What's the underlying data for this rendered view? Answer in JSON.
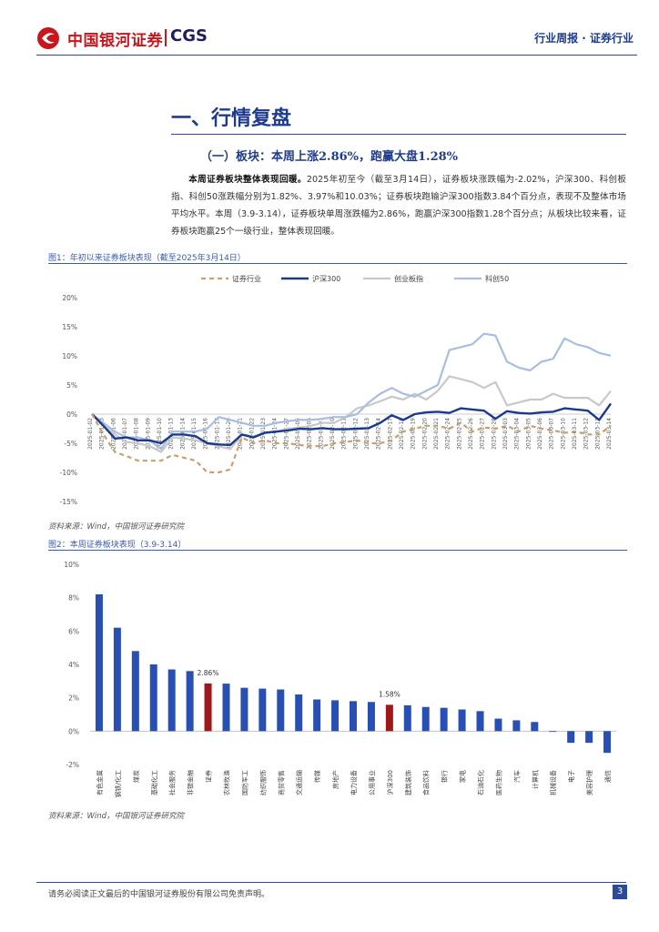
{
  "header": {
    "logo_cn": "中国银河证券",
    "logo_en": "CGS",
    "report_type": "行业周报 · 证券行业"
  },
  "section": {
    "title": "一、行情复盘",
    "subtitle": "（一）板块：本周上涨2.86%，跑赢大盘1.28%"
  },
  "body": {
    "lead": "本周证券板块整体表现回暖。",
    "text": "2025年初至今（截至3月14日），证券板块涨跌幅为-2.02%，沪深300、科创板指、科创50涨跌幅分别为1.82%、3.97%和10.03%；证券板块跑输沪深300指数3.84个百分点，表现不及整体市场平均水平。本周（3.9-3.14），证券板块单周涨跌幅为2.86%，跑赢沪深300指数1.28个百分点；从板块比较来看，证券板块跑赢25个一级行业，整体表现回暖。"
  },
  "figure1": {
    "title": "图1：年初以来证券板块表现（截至2025年3月14日）",
    "source": "资料来源：Wind，中国银河证券研究院"
  },
  "figure2": {
    "title": "图2：本周证券板块表现（3.9-3.14）",
    "source": "资料来源：Wind，中国银河证券研究院"
  },
  "footer": {
    "disclaimer": "请务必阅读正文最后的中国银河证券股份有限公司免责声明。",
    "page": "3"
  },
  "colors": {
    "brand_red": "#c8161d",
    "navy": "#1f3b8c",
    "security_line": "#c8a070",
    "hs300_line": "#1a3a8c",
    "star_line": "#c8c8c8",
    "star50_line": "#a9bde0",
    "bar_blue": "#2850b4",
    "bar_red": "#a01818"
  },
  "chart_data": [
    {
      "type": "line",
      "title": "年初以来证券板块表现（截至2025年3月14日）",
      "ylim": [
        -15,
        20
      ],
      "yticks": [
        "20%",
        "15%",
        "10%",
        "5%",
        "0%",
        "-5%",
        "-10%",
        "-15%"
      ],
      "x": [
        "2025-01-02",
        "2025-01-03",
        "2025-01-06",
        "2025-01-07",
        "2025-01-08",
        "2025-01-09",
        "2025-01-10",
        "2025-01-13",
        "2025-01-14",
        "2025-01-15",
        "2025-01-16",
        "2025-01-17",
        "2025-01-20",
        "2025-01-21",
        "2025-01-22",
        "2025-01-23",
        "2025-01-24",
        "2025-01-27",
        "2025-02-05",
        "2025-02-06",
        "2025-02-07",
        "2025-02-10",
        "2025-02-11",
        "2025-02-12",
        "2025-02-13",
        "2025-02-14",
        "2025-02-17",
        "2025-02-18",
        "2025-02-19",
        "2025-02-20",
        "2025-02-21",
        "2025-02-24",
        "2025-02-25",
        "2025-02-26",
        "2025-02-27",
        "2025-02-28",
        "2025-03-03",
        "2025-03-04",
        "2025-03-05",
        "2025-03-06",
        "2025-03-07",
        "2025-03-10",
        "2025-03-11",
        "2025-03-12",
        "2025-03-13",
        "2025-03-14"
      ],
      "x_tick_labels": [
        "2025-01-02",
        "2025-01-03",
        "2025-01-06",
        "2025-01-07",
        "2025-01-08",
        "2025-01-09",
        "2025-01-10",
        "2025-01-13",
        "2025-01-14",
        "2025-01-15",
        "2025-01-16",
        "2025-01-17",
        "2025-01-20",
        "2025-01-21",
        "2025-01-22",
        "2025-01-23",
        "2025-01-24",
        "2025-01-27",
        "2025-02-05",
        "2025-02-06",
        "2025-02-07",
        "2025-02-10",
        "2025-02-11",
        "2025-02-12",
        "2025-02-13",
        "2025-02-14",
        "2025-02-17",
        "2025-02-18",
        "2025-02-19",
        "2025-02-20",
        "2025-02-21",
        "2025-02-24",
        "2025-02-25",
        "2025-02-26",
        "2025-02-27",
        "2025-02-28",
        "2025-03-03",
        "2025-03-04",
        "2025-03-05",
        "2025-03-06",
        "2025-03-07",
        "2025-03-10",
        "2025-03-11",
        "2025-03-12",
        "2025-03-13",
        "2025-03-14"
      ],
      "series": [
        {
          "name": "证券行业",
          "style": "dashed",
          "values": [
            0,
            -3.5,
            -6.5,
            -7.2,
            -8,
            -8,
            -8,
            -7,
            -7.5,
            -8,
            -10,
            -10,
            -9.5,
            -4,
            -5,
            -4.5,
            -5,
            -5,
            -5.3,
            -5.5,
            -5.5,
            -5,
            -4.8,
            -4.5,
            -5,
            -5,
            -4.5,
            -3,
            -2.5,
            -2,
            -2,
            -2.5,
            -1.5,
            -3,
            -2.3,
            -2.5,
            -2,
            -3,
            -2,
            -2.5,
            -2.8,
            -3.2,
            -3,
            -3.5,
            -3.5,
            -2.0
          ]
        },
        {
          "name": "沪深300",
          "style": "solid-bold",
          "values": [
            0,
            -2,
            -4.2,
            -4,
            -4.5,
            -4.5,
            -5,
            -3.5,
            -3.5,
            -3.8,
            -5,
            -5.2,
            -5.3,
            -3.5,
            -4,
            -3.2,
            -3,
            -2.8,
            -2.5,
            -2.6,
            -2.4,
            -2.6,
            -2.6,
            -2.5,
            -2.4,
            -1.5,
            -0.2,
            -1,
            0,
            0.3,
            0.4,
            0.2,
            1,
            0.8,
            0.6,
            -0.8,
            0.5,
            0.2,
            0.1,
            0.3,
            0.4,
            1.0,
            0.8,
            0.6,
            -1.0,
            1.82
          ]
        },
        {
          "name": "创业板指",
          "style": "solid",
          "values": [
            0,
            -2,
            -3.5,
            -4.8,
            -5,
            -5.5,
            -6.5,
            -4,
            -4.2,
            -4.5,
            -5,
            -5.5,
            -6,
            -3.5,
            -3.8,
            -3.2,
            -3,
            -2.5,
            -2.3,
            -2,
            -1.5,
            -1.5,
            -0.5,
            1,
            1.5,
            2.2,
            3,
            2.5,
            3.5,
            2.5,
            4,
            6.5,
            6,
            5.5,
            4.5,
            5.5,
            1.5,
            2,
            2.5,
            2.5,
            3.5,
            2.8,
            2.8,
            2.8,
            1.5,
            3.97
          ]
        },
        {
          "name": "科创50",
          "style": "solid",
          "values": [
            0,
            -1.5,
            -3,
            -4,
            -4,
            -4.5,
            -6,
            -3,
            -3,
            -3,
            -2.5,
            -0.5,
            -1,
            -1.5,
            -2,
            -2,
            -1.5,
            -1.2,
            -1,
            -1,
            -0.8,
            -0.5,
            -0.5,
            0,
            2,
            3.5,
            4.5,
            3.5,
            3,
            4,
            5,
            11,
            11.5,
            12,
            13.8,
            13.5,
            9,
            8,
            7.5,
            9,
            9.5,
            13,
            12,
            11.5,
            10.5,
            10.03
          ]
        }
      ]
    },
    {
      "type": "bar",
      "title": "本周证券板块表现（3.9-3.14）",
      "ylim": [
        -2,
        10
      ],
      "yticks": [
        "10%",
        "8%",
        "6%",
        "4%",
        "2%",
        "0%",
        "-2%"
      ],
      "categories": [
        "有色金属",
        "钢铁/化工",
        "煤炭",
        "基础化工",
        "社会服务",
        "非银金融",
        "证券",
        "农林牧渔",
        "国防军工",
        "纺织服饰",
        "商贸零售",
        "交通运输",
        "传媒",
        "房地产",
        "电力设备",
        "公用事业",
        "沪深300",
        "建筑装饰",
        "食品饮料",
        "银行",
        "家电",
        "石油石化",
        "医药生物",
        "汽车",
        "计算机",
        "机械设备",
        "电子",
        "美容护理",
        "通信"
      ],
      "values": [
        8.2,
        6.2,
        4.8,
        4.0,
        3.7,
        3.6,
        2.86,
        2.85,
        2.6,
        2.55,
        2.5,
        2.2,
        1.9,
        1.85,
        1.8,
        1.75,
        1.58,
        1.55,
        1.45,
        1.4,
        1.3,
        1.2,
        0.75,
        0.65,
        0.55,
        0.0,
        -0.7,
        -0.7,
        -1.3
      ],
      "highlighted": [
        "证券",
        "沪深300"
      ],
      "data_labels": {
        "证券": "2.86%",
        "沪深300": "1.58%"
      }
    }
  ]
}
